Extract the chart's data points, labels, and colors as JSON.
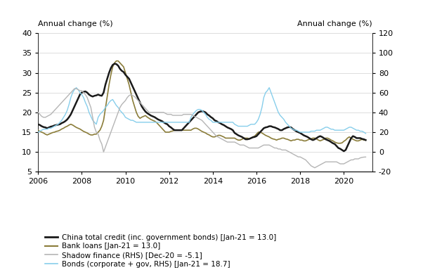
{
  "title_left": "Annual change (%)",
  "title_right": "Annual change (%)",
  "ylim_left": [
    5,
    40
  ],
  "ylim_right": [
    -20,
    120
  ],
  "yticks_left": [
    5,
    10,
    15,
    20,
    25,
    30,
    35,
    40
  ],
  "yticks_right": [
    -20,
    0,
    20,
    40,
    60,
    80,
    100,
    120
  ],
  "xlim": [
    2006.0,
    2021.3
  ],
  "xticks": [
    2006,
    2008,
    2010,
    2012,
    2014,
    2016,
    2018,
    2020
  ],
  "colors": {
    "china_credit": "#1a1a1a",
    "bank_loans": "#8B7D3A",
    "shadow_finance": "#b5b5b5",
    "bonds": "#87CEEB"
  },
  "legend": [
    "China total credit (inc. government bonds) [Jan-21 = 13.0]",
    "Bank loans [Jan-21 = 13.0]",
    "Shadow finance (RHS) [Dec-20 = -5.1]",
    "Bonds (corporate + gov, RHS) [Jan-21 = 18.7]"
  ],
  "background": "#ffffff",
  "grid_color": "#d0d0d0",
  "figsize": [
    6.02,
    3.94
  ],
  "dpi": 100
}
